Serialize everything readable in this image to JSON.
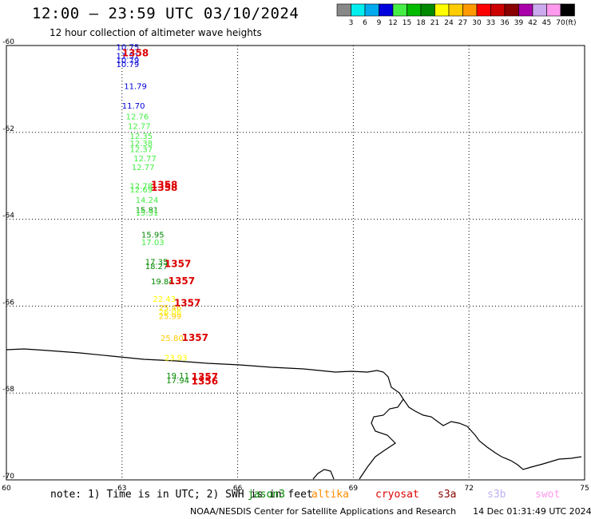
{
  "header": {
    "title": "12:00 – 23:59 UTC 03/10/2024",
    "subtitle": "12 hour collection of altimeter wave heights"
  },
  "footer": {
    "note": "note: 1) Time is in UTC; 2) SWH is in feet",
    "credit": "NOAA/NESDIS Center for Satellite Applications and Research",
    "generated": "14 Dec 01:31:49 UTC 2024",
    "satellites": [
      {
        "name": "jason3",
        "color": "#008800"
      },
      {
        "name": "altika",
        "color": "#ff8c00"
      },
      {
        "name": "cryosat",
        "color": "#dd0000"
      },
      {
        "name": "s3a",
        "color": "#880000"
      },
      {
        "name": "s3b",
        "color": "#c0b0f0"
      },
      {
        "name": "swot",
        "color": "#ff99ee"
      }
    ]
  },
  "chart_data": {
    "type": "scatter",
    "colorbar": {
      "unit": "(ft)",
      "labels": [
        "3",
        "6",
        "9",
        "12",
        "15",
        "18",
        "21",
        "24",
        "27",
        "30",
        "33",
        "36",
        "39",
        "42",
        "45",
        "70"
      ],
      "colors": [
        "#888888",
        "#00eeee",
        "#00aaee",
        "#0000dd",
        "#44ee44",
        "#00bb00",
        "#008800",
        "#ffff00",
        "#ffcc00",
        "#ff9900",
        "#ff0000",
        "#cc0000",
        "#880000",
        "#aa00aa",
        "#ccaaee",
        "#ff99ee",
        "#000000"
      ]
    },
    "x_axis": {
      "range": [
        60,
        75
      ],
      "ticks": [
        "60",
        "63",
        "66",
        "69",
        "72",
        "75"
      ]
    },
    "y_axis": {
      "range": [
        -70,
        -60
      ],
      "ticks": [
        "-60",
        "-62",
        "-64",
        "-66",
        "-68",
        "-70"
      ]
    },
    "grid": true,
    "observations": [
      {
        "lon": 62.85,
        "lat": -60.1,
        "text": "10.75",
        "color": "#0000dd"
      },
      {
        "lon": 62.85,
        "lat": -60.3,
        "text": "11.51",
        "color": "#0000dd"
      },
      {
        "lon": 62.85,
        "lat": -60.4,
        "text": "10.79",
        "color": "#0000dd"
      },
      {
        "lon": 62.85,
        "lat": -60.5,
        "text": "10.79",
        "color": "#0000dd"
      },
      {
        "lon": 63.05,
        "lat": -61.0,
        "text": "11.79",
        "color": "#0000dd"
      },
      {
        "lon": 63.0,
        "lat": -61.45,
        "text": "11.70",
        "color": "#0000dd"
      },
      {
        "lon": 63.1,
        "lat": -61.7,
        "text": "12.76",
        "color": "#44ee44"
      },
      {
        "lon": 63.15,
        "lat": -61.92,
        "text": "12.77",
        "color": "#44ee44"
      },
      {
        "lon": 63.2,
        "lat": -62.15,
        "text": "12.35",
        "color": "#44ee44"
      },
      {
        "lon": 63.2,
        "lat": -62.32,
        "text": "12.38",
        "color": "#44ee44"
      },
      {
        "lon": 63.2,
        "lat": -62.45,
        "text": "12.37",
        "color": "#44ee44"
      },
      {
        "lon": 63.3,
        "lat": -62.67,
        "text": "12.77",
        "color": "#44ee44"
      },
      {
        "lon": 63.25,
        "lat": -62.87,
        "text": "12.77",
        "color": "#44ee44"
      },
      {
        "lon": 63.2,
        "lat": -63.3,
        "text": "12.78",
        "color": "#44ee44"
      },
      {
        "lon": 63.2,
        "lat": -63.38,
        "text": "12.69",
        "color": "#44ee44"
      },
      {
        "lon": 63.35,
        "lat": -63.62,
        "text": "14.24",
        "color": "#44ee44"
      },
      {
        "lon": 63.35,
        "lat": -63.85,
        "text": "15.81",
        "color": "#008800"
      },
      {
        "lon": 63.35,
        "lat": -63.92,
        "text": "15.51",
        "color": "#44ee44"
      },
      {
        "lon": 63.5,
        "lat": -64.42,
        "text": "15.95",
        "color": "#008800"
      },
      {
        "lon": 63.5,
        "lat": -64.6,
        "text": "17.03",
        "color": "#44ee44"
      },
      {
        "lon": 63.6,
        "lat": -65.05,
        "text": "17.35",
        "color": "#008800"
      },
      {
        "lon": 63.6,
        "lat": -65.15,
        "text": "18.27",
        "color": "#008800"
      },
      {
        "lon": 63.75,
        "lat": -65.5,
        "text": "19.84",
        "color": "#008800"
      },
      {
        "lon": 63.8,
        "lat": -65.9,
        "text": "22.43",
        "color": "#ffff00"
      },
      {
        "lon": 63.95,
        "lat": -66.1,
        "text": "25.46",
        "color": "#ffcc00"
      },
      {
        "lon": 63.95,
        "lat": -66.2,
        "text": "26.06",
        "color": "#ffff00"
      },
      {
        "lon": 63.95,
        "lat": -66.3,
        "text": "25.99",
        "color": "#ffcc00"
      },
      {
        "lon": 64.0,
        "lat": -66.8,
        "text": "25.80",
        "color": "#ffcc00"
      },
      {
        "lon": 64.1,
        "lat": -67.25,
        "text": "23.93",
        "color": "#ffff00"
      },
      {
        "lon": 64.15,
        "lat": -67.67,
        "text": "19.11",
        "color": "#008800"
      },
      {
        "lon": 64.15,
        "lat": -67.78,
        "text": "17.94",
        "color": "#008800"
      },
      {
        "lon": 63.0,
        "lat": -60.25,
        "text": "1358",
        "color": "#dd0000"
      },
      {
        "lon": 63.75,
        "lat": -63.28,
        "text": "1358",
        "color": "#dd0000"
      },
      {
        "lon": 63.75,
        "lat": -63.35,
        "text": "1358",
        "color": "#dd0000"
      },
      {
        "lon": 64.1,
        "lat": -65.1,
        "text": "1357",
        "color": "#dd0000"
      },
      {
        "lon": 64.2,
        "lat": -65.5,
        "text": "1357",
        "color": "#dd0000"
      },
      {
        "lon": 64.35,
        "lat": -66.0,
        "text": "1357",
        "color": "#dd0000"
      },
      {
        "lon": 64.55,
        "lat": -66.8,
        "text": "1357",
        "color": "#dd0000"
      },
      {
        "lon": 64.8,
        "lat": -67.7,
        "text": "1357",
        "color": "#dd0000"
      },
      {
        "lon": 64.8,
        "lat": -67.8,
        "text": "1356",
        "color": "#dd0000"
      }
    ]
  }
}
